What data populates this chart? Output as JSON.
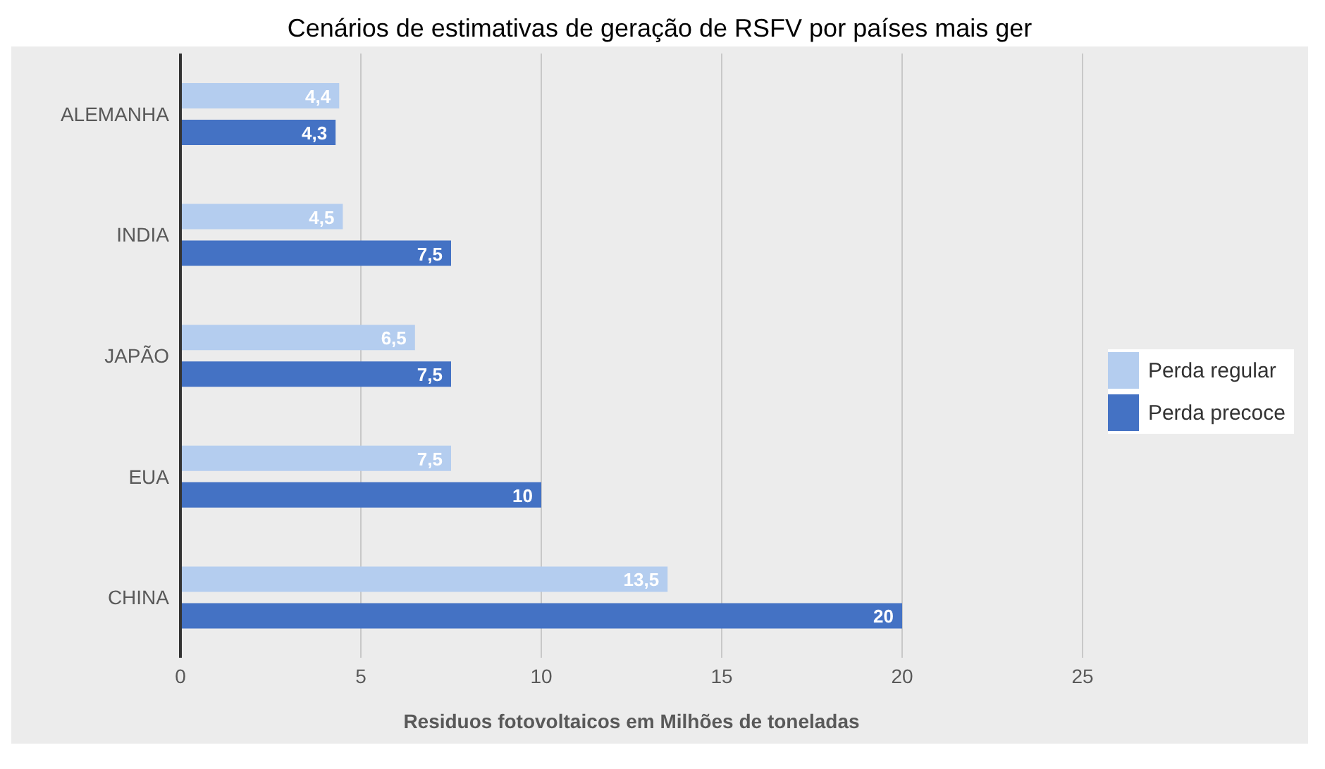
{
  "chart_data": {
    "type": "bar",
    "orientation": "horizontal",
    "title": "Cenários de estimativas de geração de RSFV por países mais ger",
    "xlabel": "Residuos fotovoltaicos em Milhões de toneladas",
    "categories": [
      "ALEMANHA",
      "INDIA",
      "JAPÃO",
      "EUA",
      "CHINA"
    ],
    "series": [
      {
        "name": "Perda regular",
        "color": "#b4cdef",
        "values": [
          4.4,
          4.5,
          6.5,
          7.5,
          13.5
        ],
        "value_labels": [
          "4,4",
          "4,5",
          "6,5",
          "7,5",
          "13,5"
        ]
      },
      {
        "name": "Perda precoce",
        "color": "#4472c4",
        "values": [
          4.3,
          7.5,
          7.5,
          10,
          20
        ],
        "value_labels": [
          "4,3",
          "7,5",
          "7,5",
          "10",
          "20"
        ]
      }
    ],
    "xlim": [
      0,
      25
    ],
    "xticks": [
      0,
      5,
      10,
      15,
      20,
      25
    ],
    "grid": "x",
    "legend": "right"
  }
}
